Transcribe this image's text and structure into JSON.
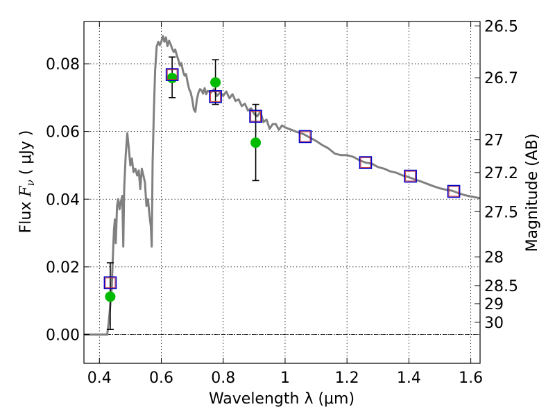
{
  "chart_data": {
    "type": "scatter",
    "xlabel": "Wavelength  λ (μm)",
    "ylabel_prefix": "Flux ",
    "ylabel_symbol": "F",
    "ylabel_subscript": "ν",
    "ylabel_suffix": " ( μJy )",
    "y2label": "Magnitude (AB)",
    "xlim": [
      0.35,
      1.63
    ],
    "ylim": [
      -0.0085,
      0.0925
    ],
    "grid": true,
    "grid_style": "dotted",
    "x_ticks": [
      {
        "value": 0.4,
        "label": "0.4"
      },
      {
        "value": 0.6,
        "label": "0.6"
      },
      {
        "value": 0.8,
        "label": "0.8"
      },
      {
        "value": 1.0,
        "label": "1"
      },
      {
        "value": 1.2,
        "label": "1.2"
      },
      {
        "value": 1.4,
        "label": "1.4"
      },
      {
        "value": 1.6,
        "label": "1.6"
      }
    ],
    "y_ticks": [
      {
        "value": 0.0,
        "label": "0.00"
      },
      {
        "value": 0.02,
        "label": "0.02"
      },
      {
        "value": 0.04,
        "label": "0.04"
      },
      {
        "value": 0.06,
        "label": "0.06"
      },
      {
        "value": 0.08,
        "label": "0.08"
      }
    ],
    "y2_ticks": [
      {
        "value": 26.5,
        "label": "26.5"
      },
      {
        "value": 26.7,
        "label": "26.7"
      },
      {
        "value": 27.0,
        "label": "27"
      },
      {
        "value": 27.2,
        "label": "27.2"
      },
      {
        "value": 27.5,
        "label": "27.5"
      },
      {
        "value": 28.0,
        "label": "28"
      },
      {
        "value": 28.5,
        "label": "28.5"
      },
      {
        "value": 29.0,
        "label": "29"
      },
      {
        "value": 30.0,
        "label": "30"
      }
    ],
    "colors": {
      "sed": "#808080",
      "observed": "#00bb00",
      "model_box": "#0000cc",
      "model_box_inner": "#cc3333",
      "errorbar": "#000000",
      "zero_line": "#000000"
    },
    "series": [
      {
        "kind": "line",
        "points": [
          [
            0.35,
            0.0
          ],
          [
            0.41,
            0.0
          ],
          [
            0.425,
            0.0
          ],
          [
            0.43,
            0.0035
          ],
          [
            0.435,
            0.0085
          ],
          [
            0.44,
            0.014
          ],
          [
            0.443,
            0.022
          ],
          [
            0.447,
            0.031
          ],
          [
            0.45,
            0.034
          ],
          [
            0.453,
            0.027
          ],
          [
            0.457,
            0.038
          ],
          [
            0.461,
            0.04
          ],
          [
            0.465,
            0.037
          ],
          [
            0.47,
            0.0395
          ],
          [
            0.474,
            0.041
          ],
          [
            0.477,
            0.026
          ],
          [
            0.48,
            0.043
          ],
          [
            0.485,
            0.053
          ],
          [
            0.49,
            0.0595
          ],
          [
            0.495,
            0.055
          ],
          [
            0.5,
            0.05
          ],
          [
            0.505,
            0.052
          ],
          [
            0.51,
            0.048
          ],
          [
            0.516,
            0.049
          ],
          [
            0.522,
            0.047
          ],
          [
            0.527,
            0.0485
          ],
          [
            0.532,
            0.043
          ],
          [
            0.537,
            0.049
          ],
          [
            0.542,
            0.047
          ],
          [
            0.547,
            0.045
          ],
          [
            0.552,
            0.038
          ],
          [
            0.557,
            0.04
          ],
          [
            0.562,
            0.035
          ],
          [
            0.566,
            0.032
          ],
          [
            0.569,
            0.026
          ],
          [
            0.572,
            0.051
          ],
          [
            0.576,
            0.066
          ],
          [
            0.58,
            0.078
          ],
          [
            0.585,
            0.085
          ],
          [
            0.59,
            0.0865
          ],
          [
            0.595,
            0.0855
          ],
          [
            0.6,
            0.0865
          ],
          [
            0.605,
            0.0882
          ],
          [
            0.61,
            0.0865
          ],
          [
            0.615,
            0.0878
          ],
          [
            0.62,
            0.0852
          ],
          [
            0.625,
            0.0868
          ],
          [
            0.63,
            0.0858
          ],
          [
            0.635,
            0.0845
          ],
          [
            0.64,
            0.0835
          ],
          [
            0.645,
            0.0842
          ],
          [
            0.65,
            0.0825
          ],
          [
            0.655,
            0.0812
          ],
          [
            0.66,
            0.0795
          ],
          [
            0.665,
            0.0802
          ],
          [
            0.67,
            0.0778
          ],
          [
            0.675,
            0.0765
          ],
          [
            0.68,
            0.077
          ],
          [
            0.685,
            0.0745
          ],
          [
            0.69,
            0.0725
          ],
          [
            0.695,
            0.0715
          ],
          [
            0.7,
            0.0695
          ],
          [
            0.705,
            0.0665
          ],
          [
            0.71,
            0.0658
          ],
          [
            0.715,
            0.0695
          ],
          [
            0.72,
            0.0715
          ],
          [
            0.725,
            0.0725
          ],
          [
            0.73,
            0.0722
          ],
          [
            0.735,
            0.0712
          ],
          [
            0.74,
            0.0728
          ],
          [
            0.745,
            0.071
          ],
          [
            0.75,
            0.072
          ],
          [
            0.76,
            0.0715
          ],
          [
            0.77,
            0.0725
          ],
          [
            0.78,
            0.0705
          ],
          [
            0.79,
            0.0715
          ],
          [
            0.8,
            0.0705
          ],
          [
            0.81,
            0.0718
          ],
          [
            0.82,
            0.0698
          ],
          [
            0.83,
            0.071
          ],
          [
            0.84,
            0.069
          ],
          [
            0.85,
            0.0695
          ],
          [
            0.86,
            0.0675
          ],
          [
            0.87,
            0.0682
          ],
          [
            0.88,
            0.0662
          ],
          [
            0.89,
            0.0668
          ],
          [
            0.9,
            0.0652
          ],
          [
            0.91,
            0.0645
          ],
          [
            0.92,
            0.0658
          ],
          [
            0.93,
            0.0628
          ],
          [
            0.94,
            0.0635
          ],
          [
            0.95,
            0.0608
          ],
          [
            0.96,
            0.0622
          ],
          [
            0.97,
            0.0622
          ],
          [
            0.98,
            0.0605
          ],
          [
            0.99,
            0.0618
          ],
          [
            1.0,
            0.0612
          ],
          [
            1.02,
            0.0605
          ],
          [
            1.04,
            0.0598
          ],
          [
            1.06,
            0.0592
          ],
          [
            1.08,
            0.0582
          ],
          [
            1.1,
            0.0572
          ],
          [
            1.12,
            0.056
          ],
          [
            1.14,
            0.055
          ],
          [
            1.16,
            0.0535
          ],
          [
            1.18,
            0.053
          ],
          [
            1.2,
            0.053
          ],
          [
            1.22,
            0.0525
          ],
          [
            1.24,
            0.0515
          ],
          [
            1.26,
            0.0508
          ],
          [
            1.28,
            0.0505
          ],
          [
            1.3,
            0.0495
          ],
          [
            1.32,
            0.049
          ],
          [
            1.34,
            0.0482
          ],
          [
            1.36,
            0.0478
          ],
          [
            1.38,
            0.047
          ],
          [
            1.4,
            0.0465
          ],
          [
            1.42,
            0.0458
          ],
          [
            1.44,
            0.0452
          ],
          [
            1.46,
            0.0445
          ],
          [
            1.48,
            0.0438
          ],
          [
            1.5,
            0.0432
          ],
          [
            1.52,
            0.0428
          ],
          [
            1.54,
            0.0425
          ],
          [
            1.56,
            0.0418
          ],
          [
            1.58,
            0.0412
          ],
          [
            1.6,
            0.0408
          ],
          [
            1.63,
            0.0403
          ]
        ]
      },
      {
        "kind": "points",
        "points": [
          {
            "x": 0.435,
            "y": 0.0112,
            "yerr_low": 0.0015,
            "yerr_high": 0.0212
          },
          {
            "x": 0.635,
            "y": 0.0758,
            "yerr_low": 0.07,
            "yerr_high": 0.082
          },
          {
            "x": 0.775,
            "y": 0.0745,
            "yerr_low": 0.068,
            "yerr_high": 0.0812
          },
          {
            "x": 0.905,
            "y": 0.0567,
            "yerr_low": 0.0455,
            "yerr_high": 0.068
          }
        ]
      },
      {
        "kind": "boxes",
        "points": [
          {
            "x": 0.435,
            "y": 0.0153
          },
          {
            "x": 0.635,
            "y": 0.0768
          },
          {
            "x": 0.775,
            "y": 0.0703
          },
          {
            "x": 0.905,
            "y": 0.0645
          },
          {
            "x": 1.065,
            "y": 0.0585
          },
          {
            "x": 1.26,
            "y": 0.0508
          },
          {
            "x": 1.405,
            "y": 0.0468
          },
          {
            "x": 1.545,
            "y": 0.0423
          }
        ]
      }
    ]
  }
}
